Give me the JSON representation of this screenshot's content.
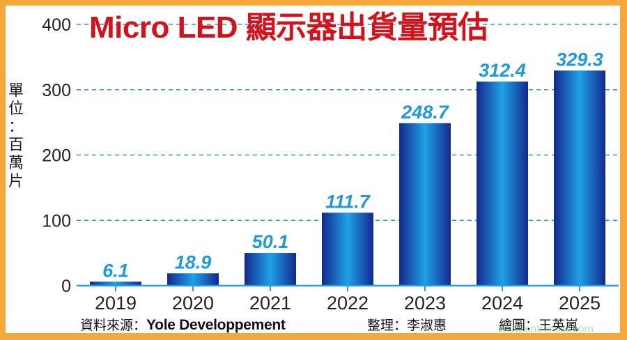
{
  "chart_data": {
    "type": "bar",
    "title": "Micro LED 顯示器出貨量預估",
    "ylabel": "單位：百萬片",
    "xlabel": "",
    "categories": [
      "2019",
      "2020",
      "2021",
      "2022",
      "2023",
      "2024",
      "2025"
    ],
    "values": [
      6.1,
      18.9,
      50.1,
      111.7,
      248.7,
      312.4,
      329.3
    ],
    "value_labels": [
      "6.1",
      "18.9",
      "50.1",
      "111.7",
      "248.7",
      "312.4",
      "329.3"
    ],
    "ylim": [
      0,
      400
    ],
    "yticks": [
      0,
      100,
      200,
      300,
      400
    ],
    "ytick_labels": [
      "0",
      "100",
      "200",
      "300",
      "400"
    ],
    "grid": "dashed horizontal",
    "legend": "none",
    "colors": {
      "bar_dark": "#14288f",
      "bar_light": "#1fa2e6",
      "value_label": "#1e9ad8",
      "grid": "#2b9ad6",
      "title": "#d3121b",
      "frame": "#f5a83a"
    }
  },
  "footer": {
    "source_label": "資料來源：",
    "source_name": "Yole Developpement",
    "editor": "整理：李淑惠",
    "artist": "繪圖：王英嵐"
  },
  "watermark": "www.cntronics.com"
}
